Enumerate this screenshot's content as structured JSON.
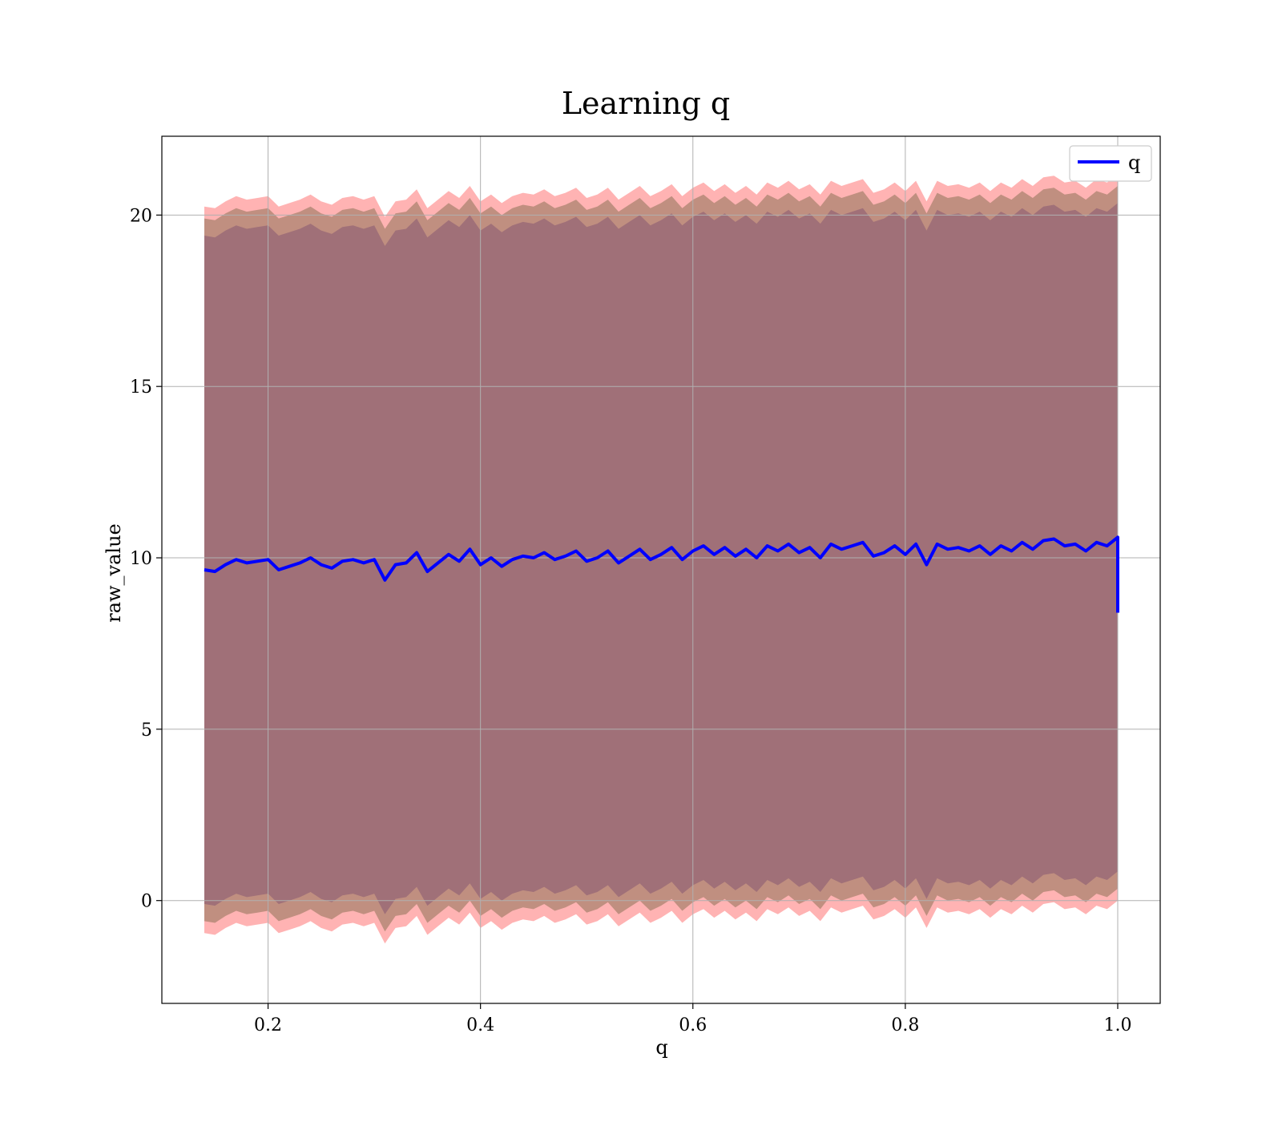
{
  "chart_data": {
    "type": "line",
    "title": "Learning q",
    "xlabel": "q",
    "ylabel": "raw_value",
    "xlim": [
      0.1,
      1.04
    ],
    "ylim": [
      -3,
      22.3
    ],
    "x_ticks": [
      0.2,
      0.4,
      0.6,
      0.8,
      1.0
    ],
    "y_ticks": [
      0,
      5,
      10,
      15,
      20
    ],
    "x_tick_labels": [
      "0.2",
      "0.4",
      "0.6",
      "0.8",
      "1.0"
    ],
    "y_tick_labels": [
      "0",
      "5",
      "10",
      "15",
      "20"
    ],
    "grid": true,
    "legend": {
      "position": "top-right",
      "entries": [
        "q"
      ]
    },
    "colors": {
      "line": "#0000ff",
      "outer_band": "#ff9999",
      "middle_band": "#b58877",
      "inner_band": "#a07078"
    },
    "series": [
      {
        "name": "q",
        "x": [
          0.14,
          0.15,
          0.16,
          0.17,
          0.18,
          0.19,
          0.2,
          0.21,
          0.22,
          0.23,
          0.24,
          0.25,
          0.26,
          0.27,
          0.28,
          0.29,
          0.3,
          0.31,
          0.32,
          0.33,
          0.34,
          0.35,
          0.36,
          0.37,
          0.38,
          0.39,
          0.4,
          0.41,
          0.42,
          0.43,
          0.44,
          0.45,
          0.46,
          0.47,
          0.48,
          0.49,
          0.5,
          0.51,
          0.52,
          0.53,
          0.54,
          0.55,
          0.56,
          0.57,
          0.58,
          0.59,
          0.6,
          0.61,
          0.62,
          0.63,
          0.64,
          0.65,
          0.66,
          0.67,
          0.68,
          0.69,
          0.7,
          0.71,
          0.72,
          0.73,
          0.74,
          0.75,
          0.76,
          0.77,
          0.78,
          0.79,
          0.8,
          0.81,
          0.82,
          0.83,
          0.84,
          0.85,
          0.86,
          0.87,
          0.88,
          0.89,
          0.9,
          0.91,
          0.92,
          0.93,
          0.94,
          0.95,
          0.96,
          0.97,
          0.98,
          0.99,
          1.0
        ],
        "y": [
          9.65,
          9.6,
          9.8,
          9.95,
          9.85,
          9.9,
          9.95,
          9.65,
          9.75,
          9.85,
          10.0,
          9.8,
          9.7,
          9.9,
          9.95,
          9.85,
          9.95,
          9.35,
          9.8,
          9.85,
          10.15,
          9.6,
          9.85,
          10.1,
          9.9,
          10.25,
          9.8,
          10.0,
          9.75,
          9.95,
          10.05,
          10.0,
          10.15,
          9.95,
          10.05,
          10.2,
          9.9,
          10.0,
          10.2,
          9.85,
          10.05,
          10.25,
          9.95,
          10.1,
          10.3,
          9.95,
          10.2,
          10.35,
          10.1,
          10.3,
          10.05,
          10.25,
          10.0,
          10.35,
          10.2,
          10.4,
          10.15,
          10.3,
          10.0,
          10.4,
          10.25,
          10.35,
          10.45,
          10.05,
          10.15,
          10.35,
          10.1,
          10.4,
          9.8,
          10.4,
          10.25,
          10.3,
          10.2,
          10.35,
          10.1,
          10.35,
          10.2,
          10.45,
          10.25,
          10.5,
          10.55,
          10.35,
          10.4,
          10.2,
          10.45,
          10.35,
          10.6
        ],
        "end_drop": 8.4
      }
    ],
    "bands": [
      {
        "name": "outer",
        "half_width": 10.6
      },
      {
        "name": "middle",
        "half_width": 10.25
      },
      {
        "name": "inner",
        "half_width": 9.75
      }
    ]
  }
}
